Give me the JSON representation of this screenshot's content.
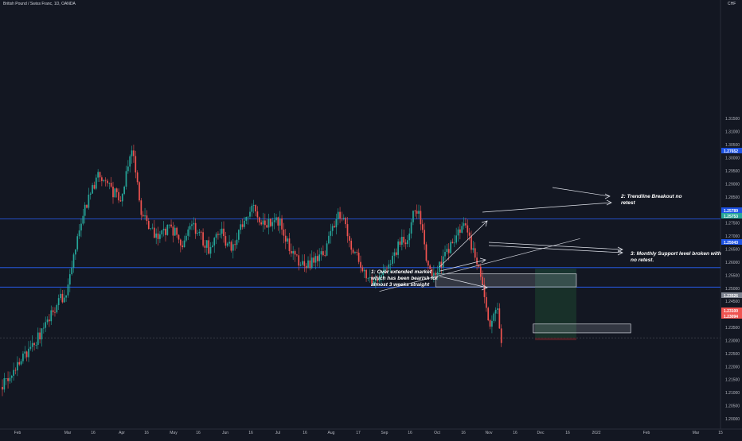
{
  "title": "British Pound / Swiss Franc, 1D, OANDA",
  "currency": "CHF",
  "colors": {
    "background": "#131722",
    "up": "#26a69a",
    "down": "#ef5350",
    "level_line": "#2962ff",
    "badge_blue": "#1e53e5",
    "badge_green": "#26a69a",
    "badge_red": "#ef5350",
    "badge_gray": "#7e8491"
  },
  "chart_data": {
    "type": "candlestick",
    "title": "British Pound / Swiss Franc, 1D, OANDA",
    "ylabel": "CHF",
    "ylim": [
      1.2,
      1.3171
    ],
    "y_ticks": [
      1.315,
      1.31,
      1.305,
      1.3,
      1.295,
      1.29,
      1.285,
      1.28,
      1.275,
      1.27,
      1.265,
      1.26,
      1.255,
      1.25,
      1.245,
      1.24,
      1.235,
      1.23,
      1.225,
      1.22,
      1.215,
      1.21,
      1.205,
      1.2
    ],
    "x_ticks": [
      "Feb",
      "Mar",
      "16",
      "Apr",
      "16",
      "May",
      "16",
      "Jun",
      "16",
      "Jul",
      "16",
      "Aug",
      "17",
      "Sep",
      "16",
      "Oct",
      "16",
      "Nov",
      "16",
      "Dec",
      "16",
      "2022",
      "Feb",
      "Mar",
      "15"
    ],
    "candles": {
      "x_start": "2021-01-28",
      "anchors": [
        [
          0,
          1.2125
        ],
        [
          8,
          1.22
        ],
        [
          20,
          1.232
        ],
        [
          24,
          1.238
        ],
        [
          34,
          1.249
        ],
        [
          40,
          1.268
        ],
        [
          46,
          1.286
        ],
        [
          52,
          1.294
        ],
        [
          58,
          1.288
        ],
        [
          63,
          1.283
        ],
        [
          66,
          1.295
        ],
        [
          69,
          1.305
        ],
        [
          71,
          1.294
        ],
        [
          74,
          1.278
        ],
        [
          82,
          1.27
        ],
        [
          90,
          1.273
        ],
        [
          96,
          1.267
        ],
        [
          102,
          1.274
        ],
        [
          110,
          1.265
        ],
        [
          116,
          1.272
        ],
        [
          122,
          1.265
        ],
        [
          130,
          1.278
        ],
        [
          134,
          1.281
        ],
        [
          140,
          1.274
        ],
        [
          148,
          1.276
        ],
        [
          154,
          1.264
        ],
        [
          160,
          1.259
        ],
        [
          166,
          1.26
        ],
        [
          172,
          1.264
        ],
        [
          178,
          1.277
        ],
        [
          182,
          1.278
        ],
        [
          186,
          1.266
        ],
        [
          196,
          1.252
        ],
        [
          204,
          1.258
        ],
        [
          210,
          1.265
        ],
        [
          216,
          1.27
        ],
        [
          220,
          1.281
        ],
        [
          222,
          1.279
        ],
        [
          226,
          1.262
        ],
        [
          230,
          1.255
        ],
        [
          236,
          1.262
        ],
        [
          242,
          1.27
        ],
        [
          246,
          1.274
        ],
        [
          252,
          1.263
        ],
        [
          256,
          1.252
        ],
        [
          260,
          1.234
        ],
        [
          262,
          1.24
        ],
        [
          264,
          1.244
        ],
        [
          266,
          1.229
        ]
      ]
    },
    "horizontal_levels": [
      1.27652,
      1.25789,
      1.25043,
      1.231
    ],
    "price_badges": [
      {
        "value": "1.27652",
        "kind": "blue"
      },
      {
        "value": "1.25789",
        "kind": "blue"
      },
      {
        "value": "1.25753",
        "kind": "green"
      },
      {
        "value": "1.25043",
        "kind": "blue"
      },
      {
        "value": "1.23526",
        "kind": "gray"
      },
      {
        "value": "1.23100",
        "kind": "red"
      },
      {
        "value": "1.23094",
        "kind": "red"
      }
    ],
    "zones": [
      {
        "from": "2021-09-16",
        "to": "2021-11-30",
        "low": 1.2505,
        "high": 1.2555
      },
      {
        "from": "2021-11-07",
        "to": "2021-12-29",
        "low": 1.2329,
        "high": 1.2363
      }
    ],
    "position": {
      "from": "2021-11-08",
      "to": "2021-11-30",
      "entry": 1.2505,
      "target": 1.2575,
      "stop": 1.231
    },
    "trendline": {
      "from": [
        "2021-08-17",
        1.2488
      ],
      "to": [
        "2021-12-02",
        1.269
      ]
    },
    "annotations": [
      "1: Over extended market which has been bearish for almost 3 weeks straight",
      "2: Trendline Breakout no retest",
      "3: Monthly Support level broken with no retest."
    ]
  }
}
